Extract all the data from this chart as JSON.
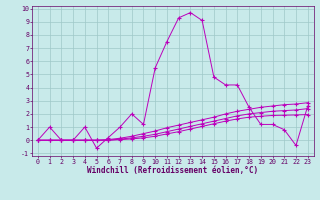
{
  "xlabel": "Windchill (Refroidissement éolien,°C)",
  "background_color": "#c8eaea",
  "grid_color": "#9fc8c8",
  "line_color": "#bb00bb",
  "xlim": [
    -0.5,
    23.5
  ],
  "ylim": [
    -1.2,
    10.2
  ],
  "xticks": [
    0,
    1,
    2,
    3,
    4,
    5,
    6,
    7,
    8,
    9,
    10,
    11,
    12,
    13,
    14,
    15,
    16,
    17,
    18,
    19,
    20,
    21,
    22,
    23
  ],
  "yticks": [
    -1,
    0,
    1,
    2,
    3,
    4,
    5,
    6,
    7,
    8,
    9,
    10
  ],
  "line1_x": [
    0,
    1,
    2,
    3,
    4,
    5,
    6,
    7,
    8,
    9,
    10,
    11,
    12,
    13,
    14,
    15,
    16,
    17,
    18,
    19,
    20,
    21,
    22,
    23
  ],
  "line1_y": [
    0.0,
    1.0,
    0.0,
    0.0,
    1.0,
    -0.6,
    0.2,
    1.0,
    2.0,
    1.2,
    5.5,
    7.5,
    9.3,
    9.7,
    9.1,
    4.8,
    4.2,
    4.2,
    2.5,
    1.2,
    1.2,
    0.8,
    -0.4,
    2.6
  ],
  "line2_x": [
    0,
    1,
    2,
    3,
    4,
    5,
    6,
    7,
    8,
    9,
    10,
    11,
    12,
    13,
    14,
    15,
    16,
    17,
    18,
    19,
    20,
    21,
    22,
    23
  ],
  "line2_y": [
    0.0,
    0.0,
    0.0,
    0.0,
    0.0,
    0.0,
    0.05,
    0.15,
    0.3,
    0.5,
    0.7,
    0.95,
    1.15,
    1.35,
    1.55,
    1.75,
    2.0,
    2.2,
    2.35,
    2.5,
    2.6,
    2.7,
    2.75,
    2.85
  ],
  "line3_x": [
    0,
    1,
    2,
    3,
    4,
    5,
    6,
    7,
    8,
    9,
    10,
    11,
    12,
    13,
    14,
    15,
    16,
    17,
    18,
    19,
    20,
    21,
    22,
    23
  ],
  "line3_y": [
    0.0,
    0.0,
    0.0,
    0.0,
    0.0,
    0.0,
    0.0,
    0.08,
    0.18,
    0.3,
    0.45,
    0.65,
    0.85,
    1.05,
    1.25,
    1.45,
    1.65,
    1.85,
    2.0,
    2.1,
    2.2,
    2.25,
    2.3,
    2.4
  ],
  "line4_x": [
    0,
    1,
    2,
    3,
    4,
    5,
    6,
    7,
    8,
    9,
    10,
    11,
    12,
    13,
    14,
    15,
    16,
    17,
    18,
    19,
    20,
    21,
    22,
    23
  ],
  "line4_y": [
    0.0,
    0.0,
    0.0,
    0.0,
    0.0,
    0.0,
    0.0,
    0.04,
    0.1,
    0.18,
    0.3,
    0.48,
    0.65,
    0.85,
    1.05,
    1.25,
    1.45,
    1.62,
    1.75,
    1.82,
    1.88,
    1.9,
    1.92,
    1.95
  ],
  "tick_color": "#660066",
  "xlabel_fontsize": 5.5,
  "tick_fontsize": 4.8
}
